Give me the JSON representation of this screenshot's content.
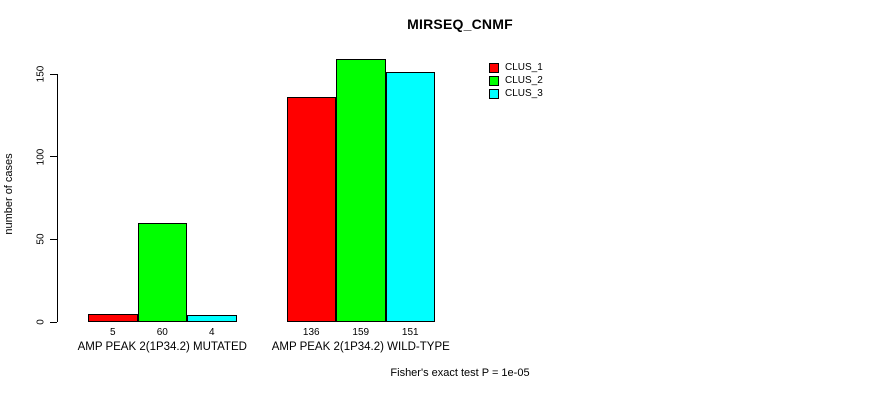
{
  "chart_data": {
    "type": "bar",
    "title": "MIRSEQ_CNMF",
    "xlabel": "",
    "ylabel": "number of cases",
    "yticks": [
      0,
      50,
      100,
      150
    ],
    "ylim": [
      0,
      159
    ],
    "grid": false,
    "legend_position": "top-right-inside",
    "categories": [
      "AMP PEAK 2(1P34.2) MUTATED",
      "AMP PEAK 2(1P34.2) WILD-TYPE"
    ],
    "series": [
      {
        "name": "CLUS_1",
        "color": "#FF0000",
        "values": [
          5,
          136
        ]
      },
      {
        "name": "CLUS_2",
        "color": "#00FF00",
        "values": [
          60,
          159
        ]
      },
      {
        "name": "CLUS_3",
        "color": "#00FFFF",
        "values": [
          4,
          151
        ]
      }
    ],
    "bar_value_labels": [
      [
        5,
        60,
        4
      ],
      [
        136,
        159,
        151
      ]
    ],
    "annotation": "Fisher's exact test P = 1e-05"
  },
  "legend": {
    "items": [
      {
        "label": "CLUS_1",
        "color": "#FF0000"
      },
      {
        "label": "CLUS_2",
        "color": "#00FF00"
      },
      {
        "label": "CLUS_3",
        "color": "#00FFFF"
      }
    ]
  }
}
